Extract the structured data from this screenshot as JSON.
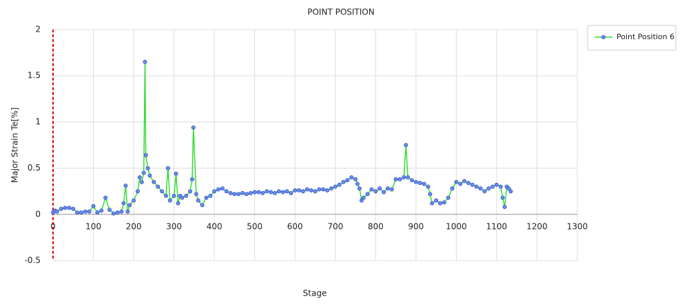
{
  "chart_data": {
    "type": "line",
    "title": "POINT POSITION",
    "x_label": "Stage",
    "y_label": "Major Strain Te[%]",
    "x": [
      0,
      5,
      10,
      20,
      30,
      40,
      50,
      60,
      70,
      80,
      90,
      100,
      110,
      120,
      130,
      140,
      150,
      160,
      170,
      175,
      180,
      185,
      190,
      200,
      210,
      215,
      220,
      225,
      228,
      230,
      235,
      240,
      250,
      260,
      270,
      280,
      285,
      290,
      300,
      305,
      310,
      315,
      320,
      330,
      340,
      345,
      348,
      355,
      360,
      370,
      380,
      390,
      400,
      410,
      420,
      430,
      440,
      450,
      460,
      470,
      480,
      490,
      500,
      510,
      520,
      530,
      540,
      550,
      560,
      570,
      580,
      590,
      600,
      610,
      620,
      630,
      640,
      650,
      660,
      670,
      680,
      690,
      700,
      710,
      720,
      730,
      740,
      750,
      755,
      760,
      765,
      770,
      780,
      790,
      800,
      810,
      820,
      830,
      840,
      850,
      860,
      870,
      875,
      880,
      890,
      900,
      910,
      920,
      930,
      935,
      940,
      950,
      960,
      970,
      980,
      990,
      1000,
      1010,
      1020,
      1030,
      1040,
      1050,
      1060,
      1070,
      1080,
      1090,
      1100,
      1110,
      1115,
      1120,
      1125,
      1130,
      1135
    ],
    "series": [
      {
        "name": "Point Position 6",
        "color": "#33dd33",
        "marker_color": "#6a8de8",
        "values": [
          0.02,
          0.04,
          0.03,
          0.06,
          0.07,
          0.07,
          0.06,
          0.02,
          0.02,
          0.03,
          0.03,
          0.09,
          0.02,
          0.04,
          0.18,
          0.05,
          0.01,
          0.02,
          0.03,
          0.12,
          0.31,
          0.03,
          0.1,
          0.15,
          0.25,
          0.4,
          0.35,
          0.45,
          1.65,
          0.64,
          0.5,
          0.42,
          0.35,
          0.3,
          0.25,
          0.2,
          0.5,
          0.15,
          0.2,
          0.44,
          0.12,
          0.2,
          0.18,
          0.2,
          0.25,
          0.38,
          0.94,
          0.22,
          0.15,
          0.1,
          0.18,
          0.2,
          0.25,
          0.27,
          0.28,
          0.25,
          0.23,
          0.22,
          0.22,
          0.23,
          0.22,
          0.23,
          0.24,
          0.24,
          0.23,
          0.25,
          0.24,
          0.23,
          0.25,
          0.24,
          0.25,
          0.23,
          0.26,
          0.26,
          0.25,
          0.27,
          0.26,
          0.25,
          0.27,
          0.27,
          0.26,
          0.28,
          0.3,
          0.32,
          0.35,
          0.37,
          0.4,
          0.38,
          0.33,
          0.28,
          0.15,
          0.18,
          0.22,
          0.27,
          0.25,
          0.28,
          0.24,
          0.28,
          0.27,
          0.38,
          0.38,
          0.4,
          0.75,
          0.4,
          0.37,
          0.35,
          0.34,
          0.33,
          0.3,
          0.22,
          0.12,
          0.15,
          0.12,
          0.13,
          0.18,
          0.28,
          0.35,
          0.33,
          0.36,
          0.34,
          0.32,
          0.3,
          0.28,
          0.25,
          0.28,
          0.3,
          0.32,
          0.3,
          0.18,
          0.08,
          0.3,
          0.28,
          0.25
        ]
      }
    ],
    "xlim": [
      0,
      1300
    ],
    "xticks": [
      0,
      100,
      200,
      300,
      400,
      500,
      600,
      700,
      800,
      900,
      1000,
      1100,
      1200,
      1300
    ],
    "ylim": [
      -0.5,
      2
    ],
    "yticks": [
      -0.5,
      0,
      0.5,
      1,
      1.5,
      2
    ],
    "grid": true,
    "legend": "right"
  }
}
